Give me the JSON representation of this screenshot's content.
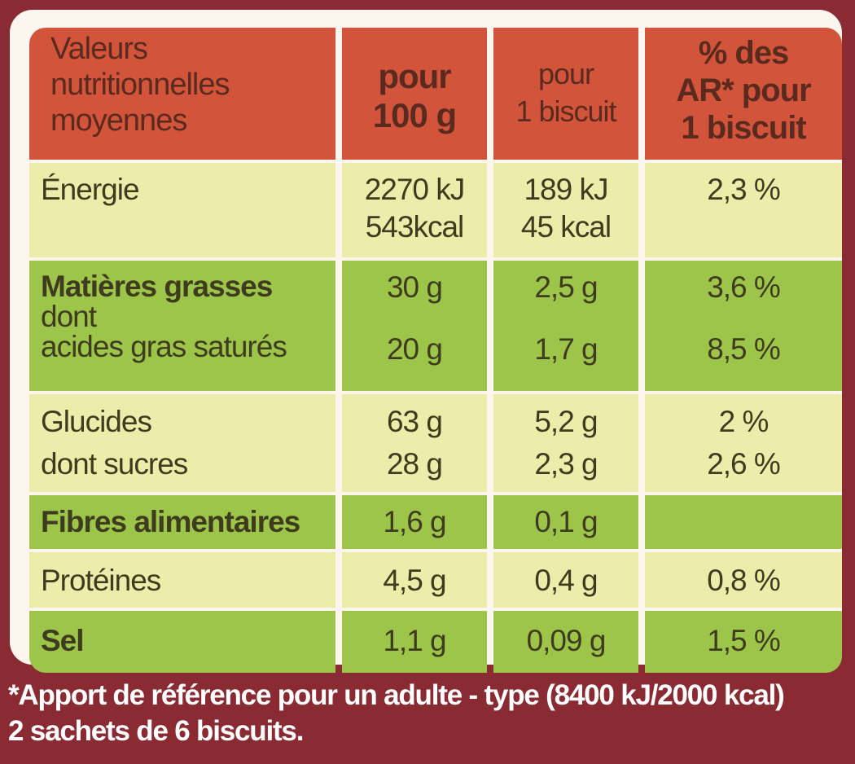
{
  "header": {
    "label": [
      "Valeurs",
      "nutritionnelles",
      "moyennes"
    ],
    "per100": [
      "pour",
      "100 g"
    ],
    "perBiscuit": [
      "pour",
      "1 biscuit"
    ],
    "ar": [
      "% des",
      "AR* pour",
      "1 biscuit"
    ]
  },
  "rows": {
    "energie": {
      "name": "Énergie",
      "per100": [
        "2270 kJ",
        "543kcal"
      ],
      "perBiscuit": [
        "189 kJ",
        "45 kcal"
      ],
      "ar": "2,3 %"
    },
    "matieres": {
      "name": "Matières grasses",
      "sub1": "dont",
      "sub2": "acides gras saturés",
      "per100": "30 g",
      "perBiscuit": "2,5 g",
      "ar": "3,6 %",
      "sat_per100": "20 g",
      "sat_perBiscuit": "1,7 g",
      "sat_ar": "8,5 %"
    },
    "glucides": {
      "name": "Glucides",
      "sub": "dont sucres",
      "per100": [
        "63 g",
        "28 g"
      ],
      "perBiscuit": [
        "5,2 g",
        "2,3 g"
      ],
      "ar": [
        "2 %",
        "2,6 %"
      ]
    },
    "fibres": {
      "name": "Fibres alimentaires",
      "per100": "1,6 g",
      "perBiscuit": "0,1 g",
      "ar": ""
    },
    "proteines": {
      "name": "Protéines",
      "per100": "4,5 g",
      "perBiscuit": "0,4 g",
      "ar": "0,8 %"
    },
    "sel": {
      "name": "Sel",
      "per100": "1,1 g",
      "perBiscuit": "0,09 g",
      "ar": "1,5 %"
    }
  },
  "footer": {
    "line1": "*Apport de référence pour un adulte - type (8400 kJ/2000 kcal)",
    "line2": "2 sachets de 6 biscuits."
  },
  "colors": {
    "background": "#8a2a33",
    "header": "#d2543a",
    "yellow_row": "#ecedaa",
    "green_row": "#9cc54a",
    "text": "#3f3b1e"
  }
}
